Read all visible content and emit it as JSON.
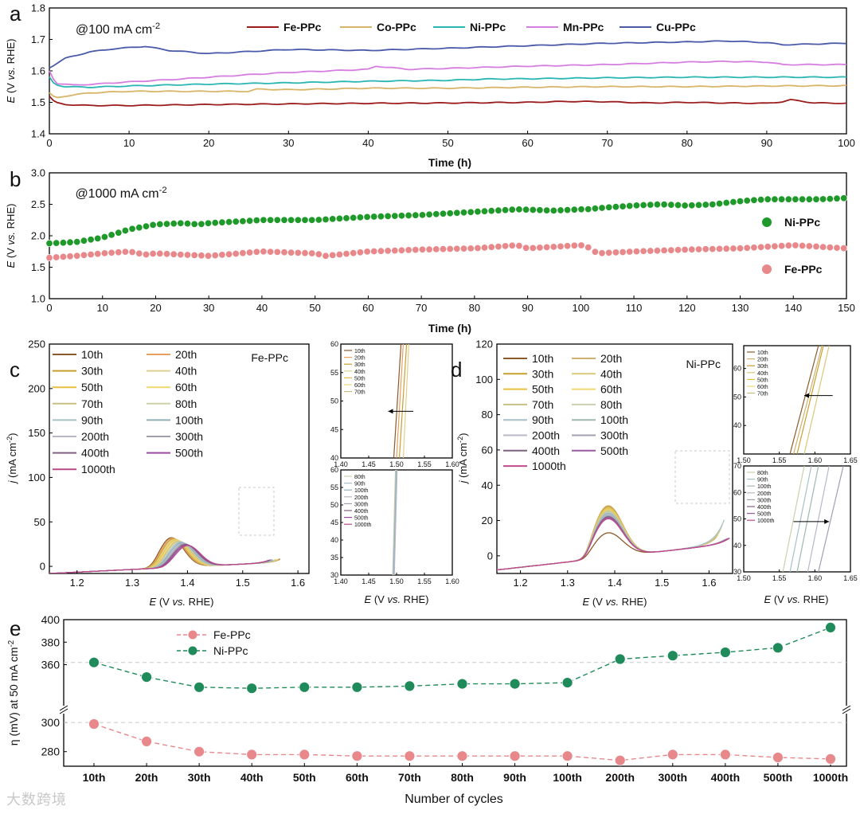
{
  "chart_data": [
    {
      "panel": "a",
      "type": "line",
      "annotation": "@100 mA cm",
      "annotation_sup": "-2",
      "xlabel": "Time (h)",
      "ylabel_main": "E",
      "ylabel_rest": " (V vs. RHE)",
      "xlim": [
        0,
        100
      ],
      "ylim": [
        1.4,
        1.8
      ],
      "xticks": [
        "0",
        "10",
        "20",
        "30",
        "40",
        "50",
        "60",
        "70",
        "80",
        "90",
        "100"
      ],
      "yticks": [
        "1.4",
        "1.5",
        "1.6",
        "1.7",
        "1.8"
      ],
      "legend_position": "top",
      "series": [
        {
          "name": "Fe-PPc",
          "color": "#9b1c1c",
          "x": [
            0,
            0.5,
            1,
            2,
            5,
            10,
            20,
            30,
            40,
            50,
            60,
            65,
            70,
            75,
            80,
            85,
            90,
            92,
            93,
            94,
            96,
            100
          ],
          "values": [
            1.52,
            1.505,
            1.498,
            1.493,
            1.49,
            1.49,
            1.493,
            1.495,
            1.497,
            1.498,
            1.5,
            1.503,
            1.502,
            1.498,
            1.5,
            1.498,
            1.497,
            1.502,
            1.508,
            1.505,
            1.498,
            1.497
          ]
        },
        {
          "name": "Co-PPc",
          "color": "#d9b56a",
          "x": [
            0,
            0.3,
            1,
            2,
            5,
            10,
            15,
            20,
            25,
            26,
            30,
            40,
            50,
            60,
            70,
            80,
            90,
            100
          ],
          "values": [
            1.53,
            1.52,
            1.515,
            1.52,
            1.53,
            1.535,
            1.535,
            1.535,
            1.535,
            1.542,
            1.54,
            1.545,
            1.545,
            1.548,
            1.55,
            1.55,
            1.552,
            1.553
          ]
        },
        {
          "name": "Ni-PPc",
          "color": "#2ab6b2",
          "x": [
            0,
            0.3,
            1,
            2,
            5,
            10,
            20,
            30,
            40,
            50,
            55,
            60,
            70,
            80,
            90,
            100
          ],
          "values": [
            1.58,
            1.565,
            1.555,
            1.55,
            1.548,
            1.552,
            1.558,
            1.562,
            1.567,
            1.57,
            1.574,
            1.575,
            1.578,
            1.58,
            1.58,
            1.58
          ]
        },
        {
          "name": "Mn-PPc",
          "color": "#d67ee0",
          "x": [
            0,
            0.5,
            1,
            3,
            5,
            10,
            15,
            20,
            25,
            30,
            35,
            40,
            41,
            45,
            50,
            60,
            70,
            80,
            85,
            90,
            92,
            100
          ],
          "values": [
            1.6,
            1.575,
            1.56,
            1.555,
            1.557,
            1.565,
            1.572,
            1.58,
            1.588,
            1.595,
            1.6,
            1.605,
            1.615,
            1.605,
            1.608,
            1.615,
            1.62,
            1.628,
            1.63,
            1.628,
            1.62,
            1.62
          ]
        },
        {
          "name": "Cu-PPc",
          "color": "#4a5aaa",
          "x": [
            0,
            2,
            5,
            8,
            12,
            15,
            20,
            30,
            40,
            50,
            60,
            70,
            80,
            85,
            90,
            92,
            100
          ],
          "values": [
            1.61,
            1.64,
            1.66,
            1.67,
            1.678,
            1.665,
            1.655,
            1.668,
            1.665,
            1.672,
            1.68,
            1.688,
            1.692,
            1.695,
            1.69,
            1.683,
            1.688
          ]
        }
      ]
    },
    {
      "panel": "b",
      "type": "scatter",
      "annotation": "@1000 mA cm",
      "annotation_sup": "-2",
      "xlabel": "Time (h)",
      "ylabel_main": "E",
      "ylabel_rest": " (V vs. RHE)",
      "xlim": [
        0,
        150
      ],
      "ylim": [
        1.0,
        3.0
      ],
      "xticks": [
        "0",
        "10",
        "20",
        "30",
        "40",
        "50",
        "60",
        "70",
        "80",
        "90",
        "100",
        "110",
        "120",
        "130",
        "140",
        "150"
      ],
      "yticks": [
        "1.0",
        "1.5",
        "2.0",
        "2.5",
        "3.0"
      ],
      "legend_position": "right",
      "series": [
        {
          "name": "Ni-PPc",
          "color": "#1f9a2a",
          "x": [
            0,
            5,
            10,
            15,
            20,
            25,
            28,
            30,
            40,
            50,
            60,
            70,
            80,
            88,
            95,
            100,
            101,
            105,
            110,
            115,
            120,
            125,
            130,
            135,
            140,
            145,
            150
          ],
          "values": [
            1.88,
            1.9,
            1.97,
            2.1,
            2.18,
            2.2,
            2.18,
            2.2,
            2.25,
            2.25,
            2.3,
            2.33,
            2.38,
            2.42,
            2.4,
            2.42,
            2.42,
            2.45,
            2.48,
            2.5,
            2.48,
            2.5,
            2.55,
            2.58,
            2.58,
            2.58,
            2.6
          ]
        },
        {
          "name": "Fe-PPc",
          "color": "#e8888a",
          "x": [
            0,
            5,
            10,
            15,
            18,
            20,
            30,
            40,
            50,
            52,
            60,
            70,
            80,
            88,
            90,
            100,
            102,
            103,
            110,
            120,
            130,
            140,
            150
          ],
          "values": [
            1.65,
            1.68,
            1.72,
            1.75,
            1.7,
            1.72,
            1.68,
            1.75,
            1.72,
            1.68,
            1.75,
            1.78,
            1.8,
            1.85,
            1.8,
            1.85,
            1.8,
            1.72,
            1.75,
            1.78,
            1.8,
            1.85,
            1.8
          ]
        }
      ]
    },
    {
      "panel": "c",
      "type": "line",
      "label": "Fe-PPc",
      "xlabel_main": "E",
      "xlabel_rest": " (V vs. RHE)",
      "ylabel_main": "j",
      "ylabel_rest": " (mA cm",
      "ylabel_sup": "-2",
      "xlim": [
        1.15,
        1.62
      ],
      "ylim": [
        -8,
        250
      ],
      "xticks": [
        "1.2",
        "1.3",
        "1.4",
        "1.5",
        "1.6"
      ],
      "yticks": [
        "0",
        "50",
        "100",
        "150",
        "200",
        "250"
      ],
      "legend": [
        "10th",
        "20th",
        "30th",
        "40th",
        "50th",
        "60th",
        "70th",
        "80th",
        "90th",
        "100th",
        "200th",
        "300th",
        "400th",
        "500th",
        "1000th"
      ],
      "legend_colors": [
        "#8b5a2b",
        "#e8a060",
        "#c8a030",
        "#e0d090",
        "#e8c040",
        "#f0d870",
        "#c8c080",
        "#d0d0a8",
        "#a8c0c8",
        "#90b0b8",
        "#b8b8c8",
        "#a0a0b0",
        "#806080",
        "#9a4aa0",
        "#b84a8a"
      ]
    },
    {
      "panel": "c-inset",
      "type": "line",
      "top_xticks": [
        "1.40",
        "1.45",
        "1.50",
        "1.55",
        "1.60"
      ],
      "top_yticks": [
        "40",
        "45",
        "50",
        "55",
        "60"
      ],
      "bottom_xticks": [
        "1.40",
        "1.45",
        "1.50",
        "1.55",
        "1.60"
      ],
      "bottom_yticks": [
        "30",
        "35",
        "40",
        "45",
        "50",
        "55",
        "60"
      ],
      "top_legend": [
        "10th",
        "20th",
        "30th",
        "40th",
        "50th",
        "60th",
        "70th"
      ],
      "bottom_legend": [
        "80th",
        "90th",
        "100th",
        "200th",
        "300th",
        "400th",
        "500th",
        "1000th"
      ],
      "xlabel_main": "E",
      "xlabel_rest": " (V vs. RHE)"
    },
    {
      "panel": "d",
      "type": "line",
      "label": "Ni-PPc",
      "xlabel_main": "E",
      "xlabel_rest": " (V vs. RHE)",
      "ylabel_main": "j",
      "ylabel_rest": " (mA cm",
      "ylabel_sup": "-2",
      "xlim": [
        1.15,
        1.65
      ],
      "ylim": [
        -10,
        120
      ],
      "xticks": [
        "1.2",
        "1.3",
        "1.4",
        "1.5",
        "1.6"
      ],
      "yticks": [
        "0",
        "20",
        "40",
        "60",
        "80",
        "100",
        "120"
      ],
      "legend": [
        "10th",
        "20th",
        "30th",
        "40th",
        "50th",
        "60th",
        "70th",
        "80th",
        "90th",
        "100th",
        "200th",
        "300th",
        "400th",
        "500th",
        "1000th"
      ],
      "legend_colors": [
        "#8b5a2b",
        "#d0b070",
        "#c8a030",
        "#d8c878",
        "#e8c040",
        "#f0d870",
        "#c8c080",
        "#c8d0b0",
        "#a8c0c8",
        "#a0b8b0",
        "#b8b8c8",
        "#a0a0b0",
        "#806080",
        "#9a5aa0",
        "#c04a8a"
      ]
    },
    {
      "panel": "d-inset",
      "type": "line",
      "top_xticks": [
        "1.50",
        "1.55",
        "1.60",
        "1.65"
      ],
      "top_yticks": [
        "40",
        "50",
        "60"
      ],
      "bottom_xticks": [
        "1.50",
        "1.55",
        "1.60",
        "1.65"
      ],
      "bottom_yticks": [
        "30",
        "40",
        "50",
        "60",
        "70"
      ],
      "top_legend": [
        "10th",
        "20th",
        "30th",
        "40th",
        "50th",
        "60th",
        "70th"
      ],
      "bottom_legend": [
        "80th",
        "90th",
        "100th",
        "200th",
        "300th",
        "400th",
        "500th",
        "1000th"
      ],
      "xlabel_main": "E",
      "xlabel_rest": " (V vs. RHE)"
    },
    {
      "panel": "e",
      "type": "scatter",
      "xlabel": "Number of cycles",
      "ylabel": "η (mV) at 50 mA cm",
      "ylabel_sup": "-2",
      "categories": [
        "10th",
        "20th",
        "30th",
        "40th",
        "50th",
        "60th",
        "70th",
        "80th",
        "90th",
        "100th",
        "200th",
        "300th",
        "400th",
        "500th",
        "1000th"
      ],
      "yticks": [
        "280",
        "300",
        "360",
        "380",
        "400"
      ],
      "axis_break": [
        305,
        325
      ],
      "series": [
        {
          "name": "Fe-PPc",
          "color": "#e8888a",
          "values": [
            299,
            287,
            280,
            278,
            278,
            277,
            277,
            277,
            277,
            277,
            274,
            278,
            278,
            276,
            275
          ]
        },
        {
          "name": "Ni-PPc",
          "color": "#1f8a5a",
          "values": [
            362,
            349,
            340,
            339,
            340,
            340,
            341,
            343,
            343,
            344,
            365,
            368,
            371,
            375,
            393
          ]
        }
      ]
    }
  ],
  "watermark": "大数跨境"
}
